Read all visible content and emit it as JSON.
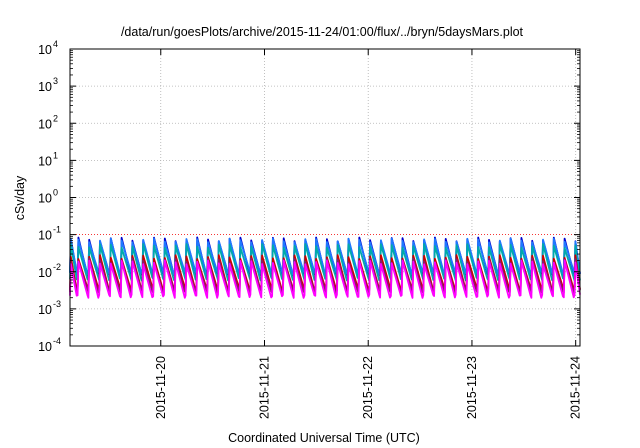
{
  "chart_data": {
    "type": "line",
    "title": "/data/run/goesPlots/archive/2015-11-24/01:00/flux/../bryn/5daysMars.plot",
    "xlabel": "Coordinated Universal Time (UTC)",
    "ylabel": "cSv/day",
    "x_scale": "time",
    "x_range": [
      "2015-11-19T03:00",
      "2015-11-24T01:00"
    ],
    "x_ticks": [
      "2015-11-20",
      "2015-11-21",
      "2015-11-22",
      "2015-11-23",
      "2015-11-24"
    ],
    "y_scale": "log",
    "y_range": [
      0.0001,
      10000
    ],
    "y_ticks": [
      {
        "value": 0.0001,
        "base": "10",
        "exp": "-4"
      },
      {
        "value": 0.001,
        "base": "10",
        "exp": "-3"
      },
      {
        "value": 0.01,
        "base": "10",
        "exp": "-2"
      },
      {
        "value": 0.1,
        "base": "10",
        "exp": "-1"
      },
      {
        "value": 1,
        "base": "10",
        "exp": "0"
      },
      {
        "value": 10,
        "base": "10",
        "exp": "1"
      },
      {
        "value": 100,
        "base": "10",
        "exp": "2"
      },
      {
        "value": 1000,
        "base": "10",
        "exp": "3"
      },
      {
        "value": 10000,
        "base": "10",
        "exp": "4"
      }
    ],
    "grid": true,
    "reference_line": {
      "value": 0.1,
      "color": "#ff0000",
      "style": "dotted"
    },
    "sawtooth_period_hours": 2.5,
    "series": [
      {
        "color": "#0000cc",
        "peak": 0.075,
        "trough": 0.0085
      },
      {
        "color": "#1f78ff",
        "peak": 0.07,
        "trough": 0.0095
      },
      {
        "color": "#00aaaa",
        "peak": 0.05,
        "trough": 0.0065
      },
      {
        "color": "#cc0000",
        "peak": 0.025,
        "trough": 0.0035
      },
      {
        "color": "#8b1a6b",
        "peak": 0.02,
        "trough": 0.003
      },
      {
        "color": "#ff00ff",
        "peak": 0.018,
        "trough": 0.0022
      }
    ]
  }
}
